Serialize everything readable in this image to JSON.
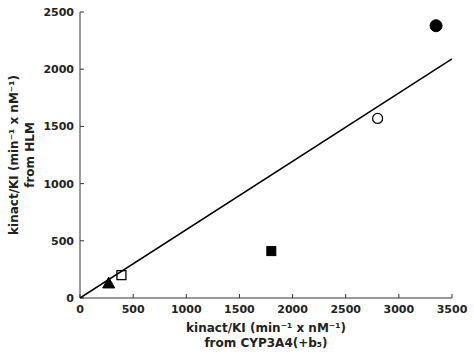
{
  "chart_data": {
    "type": "scatter",
    "x_label": [
      "kinact/KI (min⁻¹ x nM⁻¹)",
      "from CYP3A4(+b₅)"
    ],
    "y_label": [
      "kinact/KI (min⁻¹ x nM⁻¹)",
      "from HLM"
    ],
    "xlim": [
      0,
      3500
    ],
    "ylim": [
      0,
      2500
    ],
    "xticks": [
      0,
      500,
      1000,
      1500,
      2000,
      2500,
      3000,
      3500
    ],
    "yticks": [
      0,
      500,
      1000,
      1500,
      2000,
      2500
    ],
    "series": [
      {
        "type": "line",
        "color": "#000000",
        "x": [
          0,
          3500
        ],
        "values": [
          0,
          2090
        ]
      },
      {
        "type": "scatter",
        "marker": "triangle-filled",
        "color": "#000000",
        "x": [
          270
        ],
        "values": [
          130
        ]
      },
      {
        "type": "scatter",
        "marker": "square-open",
        "color": "#000000",
        "x": [
          390
        ],
        "values": [
          200
        ]
      },
      {
        "type": "scatter",
        "marker": "square-filled",
        "color": "#000000",
        "x": [
          1800
        ],
        "values": [
          410
        ]
      },
      {
        "type": "scatter",
        "marker": "circle-open",
        "color": "#000000",
        "x": [
          2800
        ],
        "values": [
          1570
        ]
      },
      {
        "type": "scatter",
        "marker": "circle-filled",
        "color": "#000000",
        "x": [
          3350
        ],
        "values": [
          2380
        ]
      }
    ]
  }
}
